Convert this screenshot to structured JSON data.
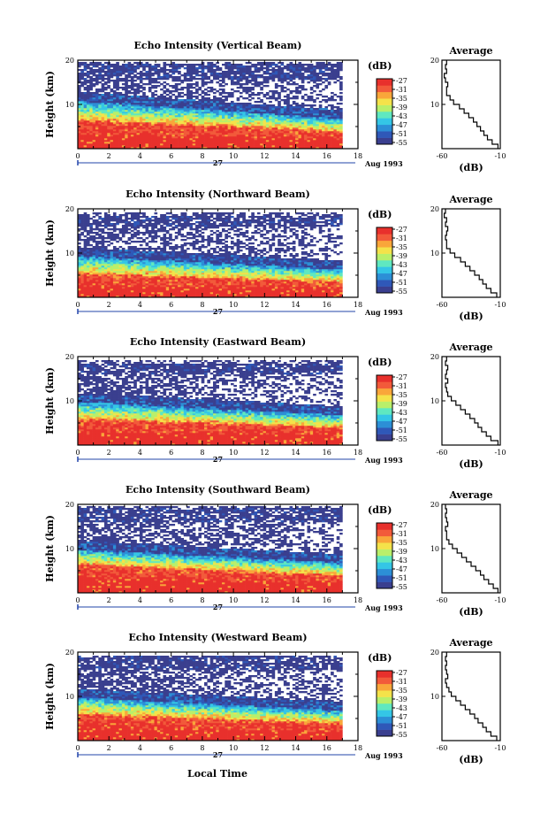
{
  "figure": {
    "xlabel": "Local Time",
    "day_label": "27",
    "month_label": "Aug 1993",
    "colorbar_unit": "(dB)",
    "colorbar_ticks": [
      "-27",
      "-31",
      "-35",
      "-39",
      "-43",
      "-47",
      "-51",
      "-55"
    ],
    "profile_title": "Average",
    "profile_xlabel": "(dB)",
    "ylabel": "Height (km)",
    "x_ticks": [
      "0",
      "2",
      "4",
      "6",
      "8",
      "10",
      "12",
      "14",
      "16",
      "18"
    ],
    "y_ticks": [
      "20",
      "10"
    ],
    "profile_x_ticks": [
      "-60",
      "-10"
    ],
    "palette": [
      "#3a3f8f",
      "#2f58b8",
      "#2c8fd6",
      "#34c6e6",
      "#5fe8c0",
      "#b9ef6a",
      "#f4e24a",
      "#f9a63a",
      "#f25a3a",
      "#e8302c"
    ]
  },
  "chart_data": [
    {
      "type": "heatmap",
      "title": "Echo Intensity (Vertical Beam)",
      "xlabel": "",
      "ylabel": "Height (km)",
      "xlim": [
        0,
        18
      ],
      "ylim": [
        0,
        20
      ],
      "data_x_range": [
        0,
        17
      ],
      "colorbar": {
        "label": "(dB)",
        "min": -57,
        "max": -25
      },
      "layers": {
        "stratosphere_top_km": 19.5,
        "upper_band_km": [
          15.5,
          19
        ],
        "tropopause_start_km": 12,
        "tropopause_end_km": 8,
        "strong_layer_top_start_km": 6.5,
        "strong_layer_top_end_km": 4
      },
      "profile": {
        "title": "Average",
        "xlabel": "(dB)",
        "xlim": [
          -60,
          -10
        ],
        "ylim": [
          0,
          20
        ],
        "heights": [
          1,
          2,
          3,
          4,
          5,
          6,
          7,
          8,
          9,
          10,
          11,
          12,
          13,
          14,
          15,
          16,
          17,
          18,
          19,
          20
        ],
        "values": [
          -12,
          -17,
          -21,
          -24,
          -27,
          -30,
          -33,
          -37,
          -41,
          -45,
          -50,
          -53,
          -56,
          -56,
          -55,
          -57,
          -58,
          -56,
          -57,
          -56
        ]
      }
    },
    {
      "type": "heatmap",
      "title": "Echo Intensity (Northward Beam)",
      "xlabel": "",
      "ylabel": "Height (km)",
      "xlim": [
        0,
        18
      ],
      "ylim": [
        0,
        20
      ],
      "data_x_range": [
        0,
        17
      ],
      "colorbar": {
        "label": "(dB)",
        "min": -57,
        "max": -25
      },
      "layers": {
        "stratosphere_top_km": 19,
        "upper_band_km": [
          16,
          18.5
        ],
        "tropopause_start_km": 10.5,
        "tropopause_end_km": 7.5,
        "strong_layer_top_start_km": 5.5,
        "strong_layer_top_end_km": 3.5
      },
      "profile": {
        "title": "Average",
        "xlabel": "(dB)",
        "xlim": [
          -60,
          -10
        ],
        "ylim": [
          0,
          20
        ],
        "heights": [
          1,
          2,
          3,
          4,
          5,
          6,
          7,
          8,
          9,
          10,
          11,
          12,
          13,
          14,
          15,
          16,
          17,
          18,
          19,
          20
        ],
        "values": [
          -13,
          -18,
          -22,
          -25,
          -28,
          -32,
          -36,
          -40,
          -44,
          -49,
          -53,
          -56,
          -56,
          -57,
          -56,
          -55,
          -57,
          -56,
          -58,
          -57
        ]
      }
    },
    {
      "type": "heatmap",
      "title": "Echo Intensity (Eastward Beam)",
      "xlabel": "",
      "ylabel": "Height (km)",
      "xlim": [
        0,
        18
      ],
      "ylim": [
        0,
        20
      ],
      "data_x_range": [
        0,
        17
      ],
      "colorbar": {
        "label": "(dB)",
        "min": -57,
        "max": -25
      },
      "layers": {
        "stratosphere_top_km": 19,
        "upper_band_km": [
          16,
          18.5
        ],
        "tropopause_start_km": 11,
        "tropopause_end_km": 8,
        "strong_layer_top_start_km": 6,
        "strong_layer_top_end_km": 4
      },
      "profile": {
        "title": "Average",
        "xlabel": "(dB)",
        "xlim": [
          -60,
          -10
        ],
        "ylim": [
          0,
          20
        ],
        "heights": [
          1,
          2,
          3,
          4,
          5,
          6,
          7,
          8,
          9,
          10,
          11,
          12,
          13,
          14,
          15,
          16,
          17,
          18,
          19,
          20
        ],
        "values": [
          -12,
          -18,
          -22,
          -26,
          -29,
          -32,
          -36,
          -40,
          -44,
          -48,
          -52,
          -55,
          -56,
          -57,
          -55,
          -57,
          -56,
          -55,
          -57,
          -56
        ]
      }
    },
    {
      "type": "heatmap",
      "title": "Echo Intensity (Southward Beam)",
      "xlabel": "",
      "ylabel": "Height (km)",
      "xlim": [
        0,
        18
      ],
      "ylim": [
        0,
        20
      ],
      "data_x_range": [
        0,
        17
      ],
      "colorbar": {
        "label": "(dB)",
        "min": -57,
        "max": -25
      },
      "layers": {
        "stratosphere_top_km": 19.5,
        "upper_band_km": [
          16,
          19
        ],
        "tropopause_start_km": 11,
        "tropopause_end_km": 8,
        "strong_layer_top_start_km": 6.5,
        "strong_layer_top_end_km": 4
      },
      "profile": {
        "title": "Average",
        "xlabel": "(dB)",
        "xlim": [
          -60,
          -10
        ],
        "ylim": [
          0,
          20
        ],
        "heights": [
          1,
          2,
          3,
          4,
          5,
          6,
          7,
          8,
          9,
          10,
          11,
          12,
          13,
          14,
          15,
          16,
          17,
          18,
          19,
          20
        ],
        "values": [
          -12,
          -16,
          -20,
          -24,
          -27,
          -31,
          -35,
          -39,
          -43,
          -47,
          -51,
          -54,
          -56,
          -56,
          -57,
          -55,
          -56,
          -57,
          -56,
          -57
        ]
      }
    },
    {
      "type": "heatmap",
      "title": "Echo Intensity (Westward Beam)",
      "xlabel": "Local Time",
      "ylabel": "Height (km)",
      "xlim": [
        0,
        18
      ],
      "ylim": [
        0,
        20
      ],
      "data_x_range": [
        0,
        17
      ],
      "colorbar": {
        "label": "(dB)",
        "min": -57,
        "max": -25
      },
      "layers": {
        "stratosphere_top_km": 19,
        "upper_band_km": [
          16,
          19
        ],
        "tropopause_start_km": 11,
        "tropopause_end_km": 8,
        "strong_layer_top_start_km": 6,
        "strong_layer_top_end_km": 4
      },
      "profile": {
        "title": "Average",
        "xlabel": "(dB)",
        "xlim": [
          -60,
          -10
        ],
        "ylim": [
          0,
          20
        ],
        "heights": [
          1,
          2,
          3,
          4,
          5,
          6,
          7,
          8,
          9,
          10,
          11,
          12,
          13,
          14,
          15,
          16,
          17,
          18,
          19,
          20
        ],
        "values": [
          -13,
          -18,
          -22,
          -25,
          -29,
          -32,
          -36,
          -40,
          -44,
          -48,
          -52,
          -54,
          -56,
          -57,
          -55,
          -56,
          -57,
          -56,
          -57,
          -56
        ]
      }
    }
  ]
}
